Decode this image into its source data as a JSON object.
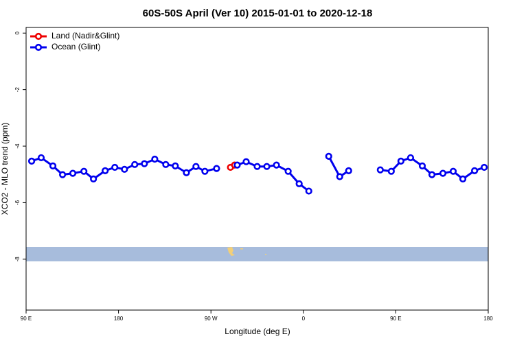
{
  "chart_data": {
    "type": "line",
    "title": "60S-50S April (Ver 10)   2015-01-01 to 2020-12-18",
    "x_label": "Longitude (deg E)",
    "y_label": "XCO2 - MLO trend (ppm)",
    "xlim": [
      90,
      540
    ],
    "ylim": [
      -9.8,
      0.2
    ],
    "xticks": [
      {
        "value": 90,
        "label": "90 E"
      },
      {
        "value": 180,
        "label": "180"
      },
      {
        "value": 270,
        "label": "90 W"
      },
      {
        "value": 360,
        "label": "0"
      },
      {
        "value": 450,
        "label": "90 E"
      },
      {
        "value": 540,
        "label": "180"
      }
    ],
    "yticks": [
      0,
      -2,
      -4,
      -6,
      -8
    ],
    "legend": "top-left",
    "series": [
      {
        "name": "Land (Nadir&Glint)",
        "color": "#ee0000",
        "x": [
          289.0,
          293.0
        ],
        "values": [
          -4.75,
          -4.67
        ]
      },
      {
        "name": "Ocean (Glint)",
        "color": "#0000ee",
        "x": [
          95.4,
          104.7,
          116.1,
          125.5,
          135.5,
          146.3,
          155.6,
          167.0,
          176.4,
          185.8,
          195.8,
          205.2,
          215.3,
          226.0,
          235.3,
          246.1,
          255.4,
          264.1,
          275.5,
          null,
          295.6,
          304.3,
          315.0,
          324.4,
          333.8,
          345.2,
          355.9,
          365.3,
          null,
          384.7,
          395.4,
          404.1,
          null,
          434.9,
          445.6,
          455.0,
          464.4,
          475.8,
          485.2,
          495.9,
          505.9,
          515.3,
          526.7,
          536.1
        ],
        "values": [
          -4.53,
          -4.41,
          -4.7,
          -5.01,
          -4.96,
          -4.89,
          -5.16,
          -4.87,
          -4.75,
          -4.82,
          -4.65,
          -4.62,
          -4.46,
          -4.65,
          -4.7,
          -4.94,
          -4.72,
          -4.89,
          -4.79,
          null,
          -4.67,
          -4.55,
          -4.72,
          -4.72,
          -4.67,
          -4.89,
          -5.33,
          -5.59,
          null,
          -4.36,
          -5.08,
          -4.87,
          null,
          -4.84,
          -4.89,
          -4.53,
          -4.41,
          -4.7,
          -5.01,
          -4.96,
          -4.89,
          -5.16,
          -4.87,
          -4.75
        ]
      }
    ]
  }
}
